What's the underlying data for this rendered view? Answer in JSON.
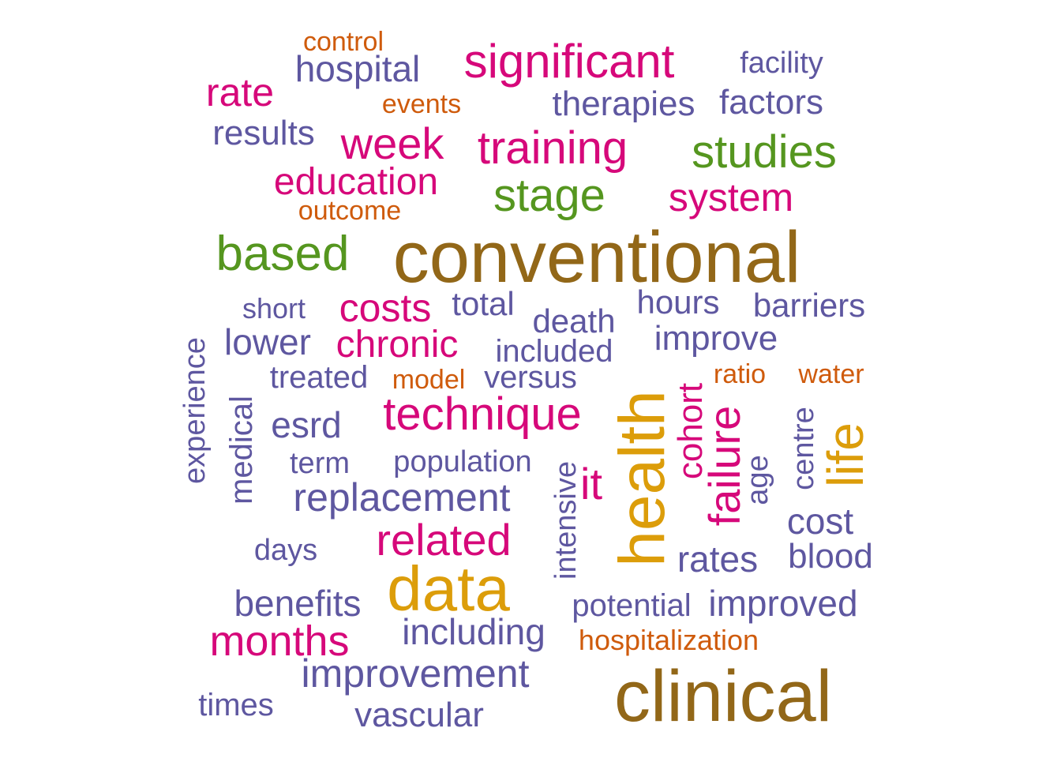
{
  "colors": {
    "purple": "#5e57a0",
    "magenta": "#d6087a",
    "orange": "#cf5b0c",
    "green": "#55961f",
    "brown": "#926718",
    "gold": "#dc9d0a"
  },
  "words": [
    {
      "text": "conventional",
      "color": "brown"
    },
    {
      "text": "clinical",
      "color": "brown"
    },
    {
      "text": "health",
      "color": "gold"
    },
    {
      "text": "data",
      "color": "gold"
    },
    {
      "text": "life",
      "color": "gold"
    },
    {
      "text": "significant",
      "color": "magenta"
    },
    {
      "text": "training",
      "color": "magenta"
    },
    {
      "text": "week",
      "color": "magenta"
    },
    {
      "text": "rate",
      "color": "magenta"
    },
    {
      "text": "education",
      "color": "magenta"
    },
    {
      "text": "system",
      "color": "magenta"
    },
    {
      "text": "costs",
      "color": "magenta"
    },
    {
      "text": "chronic",
      "color": "magenta"
    },
    {
      "text": "technique",
      "color": "magenta"
    },
    {
      "text": "related",
      "color": "magenta"
    },
    {
      "text": "months",
      "color": "magenta"
    },
    {
      "text": "failure",
      "color": "magenta"
    },
    {
      "text": "cohort",
      "color": "magenta"
    },
    {
      "text": "it",
      "color": "magenta"
    },
    {
      "text": "studies",
      "color": "green"
    },
    {
      "text": "stage",
      "color": "green"
    },
    {
      "text": "based",
      "color": "green"
    },
    {
      "text": "control",
      "color": "orange"
    },
    {
      "text": "events",
      "color": "orange"
    },
    {
      "text": "outcome",
      "color": "orange"
    },
    {
      "text": "model",
      "color": "orange"
    },
    {
      "text": "ratio",
      "color": "orange"
    },
    {
      "text": "water",
      "color": "orange"
    },
    {
      "text": "hospitalization",
      "color": "orange"
    },
    {
      "text": "hospital",
      "color": "purple"
    },
    {
      "text": "facility",
      "color": "purple"
    },
    {
      "text": "therapies",
      "color": "purple"
    },
    {
      "text": "factors",
      "color": "purple"
    },
    {
      "text": "results",
      "color": "purple"
    },
    {
      "text": "short",
      "color": "purple"
    },
    {
      "text": "total",
      "color": "purple"
    },
    {
      "text": "hours",
      "color": "purple"
    },
    {
      "text": "barriers",
      "color": "purple"
    },
    {
      "text": "death",
      "color": "purple"
    },
    {
      "text": "lower",
      "color": "purple"
    },
    {
      "text": "included",
      "color": "purple"
    },
    {
      "text": "improve",
      "color": "purple"
    },
    {
      "text": "treated",
      "color": "purple"
    },
    {
      "text": "versus",
      "color": "purple"
    },
    {
      "text": "experience",
      "color": "purple"
    },
    {
      "text": "medical",
      "color": "purple"
    },
    {
      "text": "esrd",
      "color": "purple"
    },
    {
      "text": "term",
      "color": "purple"
    },
    {
      "text": "population",
      "color": "purple"
    },
    {
      "text": "intensive",
      "color": "purple"
    },
    {
      "text": "replacement",
      "color": "purple"
    },
    {
      "text": "age",
      "color": "purple"
    },
    {
      "text": "centre",
      "color": "purple"
    },
    {
      "text": "cost",
      "color": "purple"
    },
    {
      "text": "days",
      "color": "purple"
    },
    {
      "text": "rates",
      "color": "purple"
    },
    {
      "text": "blood",
      "color": "purple"
    },
    {
      "text": "benefits",
      "color": "purple"
    },
    {
      "text": "potential",
      "color": "purple"
    },
    {
      "text": "improved",
      "color": "purple"
    },
    {
      "text": "including",
      "color": "purple"
    },
    {
      "text": "improvement",
      "color": "purple"
    },
    {
      "text": "times",
      "color": "purple"
    },
    {
      "text": "vascular",
      "color": "purple"
    }
  ]
}
